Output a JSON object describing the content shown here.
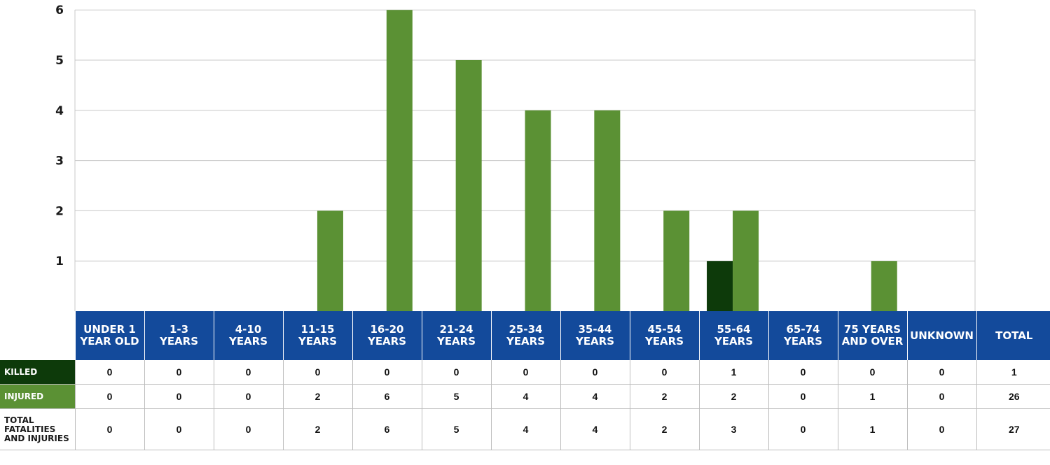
{
  "chart_data": {
    "type": "bar",
    "categories": [
      "UNDER 1 YEAR OLD",
      "1-3 YEARS",
      "4-10 YEARS",
      "11-15 YEARS",
      "16-20 YEARS",
      "21-24 YEARS",
      "25-34 YEARS",
      "35-44 YEARS",
      "45-54 YEARS",
      "55-64 YEARS",
      "65-74 YEARS",
      "75 YEARS AND OVER",
      "UNKNOWN"
    ],
    "series": [
      {
        "name": "KILLED",
        "values": [
          0,
          0,
          0,
          0,
          0,
          0,
          0,
          0,
          0,
          1,
          0,
          0,
          0
        ],
        "color": "#0d3a0a"
      },
      {
        "name": "INJURED",
        "values": [
          0,
          0,
          0,
          2,
          6,
          5,
          4,
          4,
          2,
          2,
          0,
          1,
          0
        ],
        "color": "#5b9134"
      }
    ],
    "ylim": [
      0,
      6
    ],
    "yticks": [
      1,
      2,
      3,
      4,
      5,
      6
    ],
    "grid": true,
    "title": "",
    "xlabel": "",
    "ylabel": ""
  },
  "table": {
    "headers": [
      [
        "UNDER 1",
        "YEAR OLD"
      ],
      [
        "1-3",
        "YEARS"
      ],
      [
        "4-10",
        "YEARS"
      ],
      [
        "11-15",
        "YEARS"
      ],
      [
        "16-20",
        "YEARS"
      ],
      [
        "21-24",
        "YEARS"
      ],
      [
        "25-34",
        "YEARS"
      ],
      [
        "35-44",
        "YEARS"
      ],
      [
        "45-54",
        "YEARS"
      ],
      [
        "55-64",
        "YEARS"
      ],
      [
        "65-74",
        "YEARS"
      ],
      [
        "75 YEARS",
        "AND OVER"
      ],
      [
        "UNKNOWN",
        ""
      ],
      [
        "TOTAL",
        ""
      ]
    ],
    "rows": [
      {
        "label": [
          "KILLED"
        ],
        "values": [
          "0",
          "0",
          "0",
          "0",
          "0",
          "0",
          "0",
          "0",
          "0",
          "1",
          "0",
          "0",
          "0",
          "1"
        ]
      },
      {
        "label": [
          "INJURED"
        ],
        "values": [
          "0",
          "0",
          "0",
          "2",
          "6",
          "5",
          "4",
          "4",
          "2",
          "2",
          "0",
          "1",
          "0",
          "26"
        ]
      },
      {
        "label": [
          "TOTAL",
          "FATALITIES",
          "AND INJURIES"
        ],
        "values": [
          "0",
          "0",
          "0",
          "2",
          "6",
          "5",
          "4",
          "4",
          "2",
          "3",
          "0",
          "1",
          "0",
          "27"
        ]
      }
    ]
  },
  "colors": {
    "header_bg": "#134a9b",
    "killed": "#0d3a0a",
    "injured": "#5b9134",
    "grid": "#c8c8c8"
  }
}
